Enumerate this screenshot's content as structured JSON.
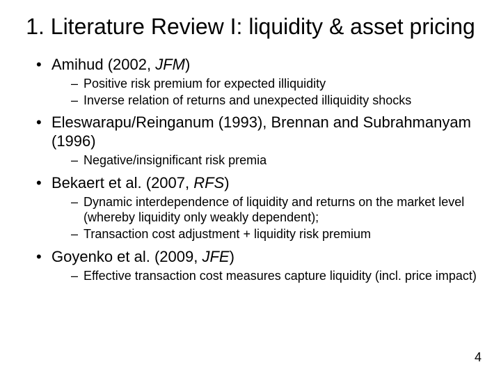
{
  "title": "1. Literature Review I: liquidity & asset pricing",
  "page_number": "4",
  "colors": {
    "background": "#ffffff",
    "text": "#000000"
  },
  "typography": {
    "title_fontsize_pt": 32,
    "level1_fontsize_pt": 22,
    "level2_fontsize_pt": 18,
    "font_family": "Arial"
  },
  "bullets": [
    {
      "pre": "Amihud (2002, ",
      "ital": "JFM",
      "post": ")",
      "sub": [
        "Positive risk premium for expected illiquidity",
        "Inverse relation of returns and unexpected illiquidity shocks"
      ]
    },
    {
      "pre": "Eleswarapu/Reinganum (1993), Brennan and Subrahmanyam (1996)",
      "ital": "",
      "post": "",
      "sub": [
        "Negative/insignificant risk premia"
      ]
    },
    {
      "pre": "Bekaert et al. (2007, ",
      "ital": "RFS",
      "post": ")",
      "sub": [
        "Dynamic interdependence of liquidity and returns on the market level (whereby liquidity only weakly dependent);",
        "Transaction cost adjustment + liquidity risk premium"
      ]
    },
    {
      "pre": "Goyenko et al. (2009, ",
      "ital": "JFE",
      "post": ")",
      "sub": [
        "Effective transaction cost measures capture liquidity (incl. price impact)"
      ]
    }
  ]
}
